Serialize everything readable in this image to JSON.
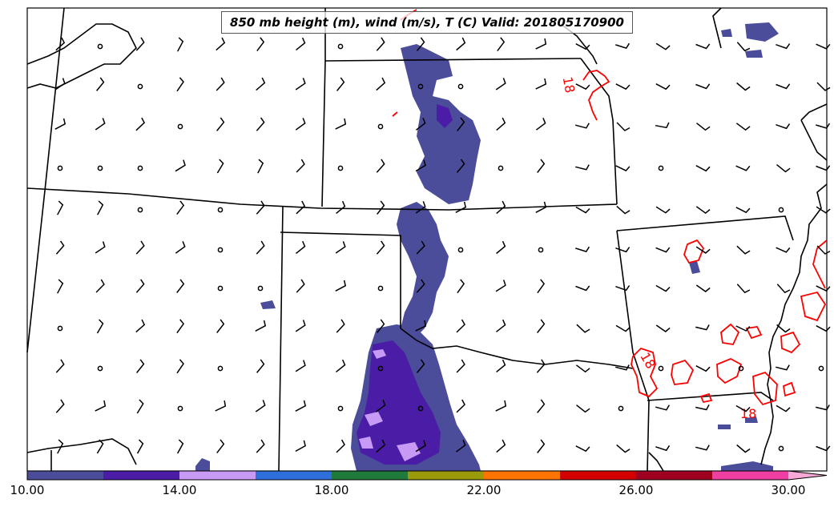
{
  "title": "850 mb height (m), wind (m/s), T (C) Valid: 201805170900",
  "colorbar": {
    "colors": [
      "#4b4d9a",
      "#4b1ca6",
      "#c79af5",
      "#2f6fdb",
      "#1f7a3c",
      "#9a9a0a",
      "#ff7300",
      "#d40000",
      "#a00020",
      "#ef3fa3",
      "#f7a8d6"
    ],
    "tick_labels": [
      "10.00",
      "14.00",
      "18.00",
      "22.00",
      "26.00",
      "30.00"
    ]
  },
  "contour_labels": [
    "18",
    "18",
    "18"
  ],
  "colors": {
    "fill_main": "#4b4d9a",
    "fill_dark": "#4b1ca6",
    "fill_light": "#c79af5",
    "temp_contour": "#ff0000",
    "borders": "#000000"
  }
}
